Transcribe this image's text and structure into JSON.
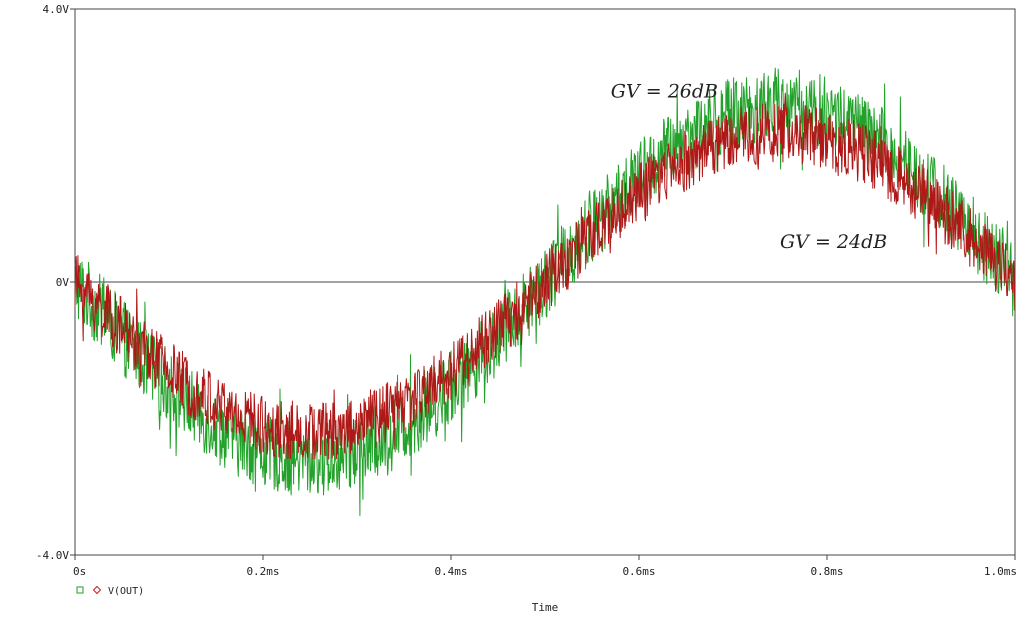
{
  "chart_data": {
    "type": "line",
    "title": "",
    "xlabel": "Time",
    "ylabel": "",
    "xlim": [
      0,
      1.0
    ],
    "ylim": [
      -4.0,
      4.0
    ],
    "x_unit": "ms",
    "x_ticks": [
      0,
      0.2,
      0.4,
      0.6,
      0.8,
      1.0
    ],
    "x_tick_labels": [
      "0s",
      "0.2ms",
      "0.4ms",
      "0.6ms",
      "0.8ms",
      "1.0ms"
    ],
    "y_ticks": [
      -4.0,
      0,
      4.0
    ],
    "y_tick_labels": [
      "-4.0V",
      "0V",
      "4.0V"
    ],
    "grid": false,
    "zero_line": true,
    "legend": {
      "placement": "bottom-left",
      "text": "V(OUT)",
      "markers": [
        {
          "shape": "square",
          "color": "#22a22a"
        },
        {
          "shape": "diamond",
          "color": "#c02020"
        }
      ]
    },
    "series": [
      {
        "color": "#22a22a",
        "envelope": {
          "shape": "-sine",
          "period_ms": 1.0,
          "trough_v": -2.6,
          "trough_at_ms": 0.25,
          "peak_v": 2.6,
          "peak_at_ms": 0.75,
          "noise_pp_v": 1.1,
          "extremes_v": [
            -3.5,
            3.5
          ]
        }
      },
      {
        "color": "#b01818",
        "envelope": {
          "shape": "-sine",
          "period_ms": 1.0,
          "trough_v": -2.2,
          "trough_at_ms": 0.25,
          "peak_v": 2.2,
          "peak_at_ms": 0.75,
          "noise_pp_v": 0.9,
          "extremes_v": [
            -2.6,
            2.8
          ]
        }
      }
    ],
    "annotations": [
      {
        "text": "GV = 26dB",
        "x": 0.57,
        "y": 2.7
      },
      {
        "text": "GV = 24dB",
        "x": 0.75,
        "y": 0.5
      }
    ]
  }
}
